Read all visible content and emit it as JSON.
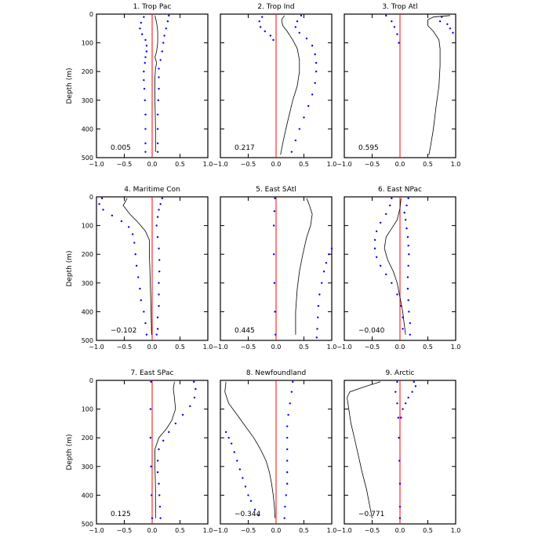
{
  "figure": {
    "ylabel": "Depth (m)",
    "xticks": [
      "−1.0",
      "−0.5",
      "0.0",
      "0.5",
      "1.0"
    ],
    "yticks": [
      "0",
      "100",
      "200",
      "300",
      "400",
      "500"
    ]
  },
  "colors": {
    "zero_line": "#ff0000",
    "dotted_series": "#0000ff",
    "solid_series": "#000000"
  },
  "chart_data": [
    {
      "type": "line",
      "title": "1. Trop Pac",
      "annotation": "0.005",
      "xlim": [
        -1.0,
        1.0
      ],
      "ylim": [
        500,
        0
      ],
      "solid": [
        [
          0.05,
          5
        ],
        [
          0.08,
          30
        ],
        [
          0.1,
          60
        ],
        [
          0.1,
          100
        ],
        [
          0.08,
          130
        ],
        [
          0.05,
          150
        ],
        [
          0.08,
          170
        ],
        [
          0.06,
          190
        ],
        [
          0.05,
          220
        ],
        [
          0.05,
          300
        ],
        [
          0.06,
          400
        ],
        [
          0.06,
          480
        ]
      ],
      "dots_left": [
        [
          -0.15,
          10
        ],
        [
          -0.2,
          30
        ],
        [
          -0.22,
          50
        ],
        [
          -0.18,
          70
        ],
        [
          -0.12,
          90
        ],
        [
          -0.1,
          110
        ],
        [
          -0.1,
          130
        ],
        [
          -0.12,
          150
        ],
        [
          -0.13,
          170
        ],
        [
          -0.15,
          200
        ],
        [
          -0.15,
          230
        ],
        [
          -0.14,
          260
        ],
        [
          -0.13,
          300
        ],
        [
          -0.12,
          350
        ],
        [
          -0.12,
          400
        ],
        [
          -0.12,
          450
        ],
        [
          -0.12,
          480
        ]
      ],
      "dots_right": [
        [
          0.3,
          5
        ],
        [
          0.28,
          25
        ],
        [
          0.25,
          50
        ],
        [
          0.22,
          75
        ],
        [
          0.2,
          100
        ],
        [
          0.18,
          130
        ],
        [
          0.15,
          160
        ],
        [
          0.12,
          190
        ],
        [
          0.12,
          220
        ],
        [
          0.12,
          260
        ],
        [
          0.11,
          300
        ],
        [
          0.1,
          350
        ],
        [
          0.1,
          400
        ],
        [
          0.1,
          450
        ],
        [
          0.1,
          480
        ]
      ]
    },
    {
      "type": "line",
      "title": "2. Trop Ind",
      "annotation": "0.217",
      "xlim": [
        -1.0,
        1.0
      ],
      "ylim": [
        500,
        0
      ],
      "solid": [
        [
          0.15,
          5
        ],
        [
          0.1,
          20
        ],
        [
          0.12,
          40
        ],
        [
          0.2,
          60
        ],
        [
          0.3,
          90
        ],
        [
          0.38,
          120
        ],
        [
          0.42,
          160
        ],
        [
          0.42,
          200
        ],
        [
          0.38,
          250
        ],
        [
          0.3,
          300
        ],
        [
          0.2,
          380
        ],
        [
          0.12,
          450
        ],
        [
          0.08,
          490
        ]
      ],
      "dots_left": [
        [
          -0.25,
          10
        ],
        [
          -0.3,
          25
        ],
        [
          -0.28,
          45
        ],
        [
          -0.2,
          60
        ],
        [
          -0.1,
          75
        ],
        [
          -0.05,
          90
        ]
      ],
      "dots_right": [
        [
          0.45,
          5
        ],
        [
          0.38,
          25
        ],
        [
          0.35,
          45
        ],
        [
          0.42,
          65
        ],
        [
          0.55,
          85
        ],
        [
          0.65,
          110
        ],
        [
          0.7,
          140
        ],
        [
          0.72,
          170
        ],
        [
          0.72,
          200
        ],
        [
          0.7,
          240
        ],
        [
          0.65,
          280
        ],
        [
          0.58,
          320
        ],
        [
          0.5,
          360
        ],
        [
          0.42,
          400
        ],
        [
          0.35,
          440
        ],
        [
          0.28,
          480
        ]
      ]
    },
    {
      "type": "line",
      "title": "3. Trop Atl",
      "annotation": "0.595",
      "xlim": [
        -1.0,
        1.0
      ],
      "ylim": [
        500,
        0
      ],
      "solid": [
        [
          0.9,
          5
        ],
        [
          0.6,
          10
        ],
        [
          0.5,
          20
        ],
        [
          0.5,
          40
        ],
        [
          0.6,
          60
        ],
        [
          0.7,
          90
        ],
        [
          0.72,
          120
        ],
        [
          0.72,
          180
        ],
        [
          0.7,
          250
        ],
        [
          0.65,
          320
        ],
        [
          0.6,
          400
        ],
        [
          0.55,
          460
        ],
        [
          0.52,
          490
        ]
      ],
      "dots_left": [
        [
          -0.25,
          5
        ],
        [
          -0.15,
          25
        ],
        [
          -0.1,
          45
        ],
        [
          -0.05,
          70
        ],
        [
          -0.02,
          100
        ]
      ],
      "dots_right": [
        [
          0.75,
          10
        ],
        [
          0.72,
          25
        ],
        [
          0.85,
          35
        ],
        [
          0.9,
          50
        ],
        [
          0.95,
          65
        ]
      ]
    },
    {
      "type": "line",
      "title": "4. Maritime Con",
      "annotation": "−0.102",
      "xlim": [
        -1.0,
        1.0
      ],
      "ylim": [
        500,
        0
      ],
      "solid": [
        [
          -0.45,
          5
        ],
        [
          -0.52,
          30
        ],
        [
          -0.4,
          60
        ],
        [
          -0.25,
          90
        ],
        [
          -0.12,
          120
        ],
        [
          -0.05,
          150
        ],
        [
          -0.05,
          200
        ],
        [
          -0.04,
          260
        ],
        [
          -0.03,
          330
        ],
        [
          -0.02,
          400
        ],
        [
          -0.01,
          480
        ]
      ],
      "dots_left": [
        [
          -0.9,
          5
        ],
        [
          -0.95,
          25
        ],
        [
          -0.88,
          45
        ],
        [
          -0.72,
          65
        ],
        [
          -0.55,
          85
        ],
        [
          -0.42,
          105
        ],
        [
          -0.35,
          130
        ],
        [
          -0.32,
          160
        ],
        [
          -0.3,
          200
        ],
        [
          -0.28,
          240
        ],
        [
          -0.25,
          280
        ],
        [
          -0.22,
          320
        ],
        [
          -0.2,
          360
        ],
        [
          -0.15,
          400
        ],
        [
          -0.12,
          440
        ],
        [
          -0.1,
          480
        ]
      ],
      "dots_right": [
        [
          0.18,
          5
        ],
        [
          0.15,
          25
        ],
        [
          0.12,
          45
        ],
        [
          0.1,
          70
        ],
        [
          0.08,
          100
        ],
        [
          0.1,
          140
        ],
        [
          0.12,
          180
        ],
        [
          0.13,
          220
        ],
        [
          0.13,
          260
        ],
        [
          0.12,
          300
        ],
        [
          0.12,
          340
        ],
        [
          0.12,
          380
        ],
        [
          0.1,
          420
        ],
        [
          0.1,
          460
        ],
        [
          0.08,
          480
        ]
      ]
    },
    {
      "type": "line",
      "title": "5. East SAtl",
      "annotation": "0.445",
      "xlim": [
        -1.0,
        1.0
      ],
      "ylim": [
        500,
        0
      ],
      "solid": [
        [
          0.55,
          5
        ],
        [
          0.6,
          30
        ],
        [
          0.65,
          60
        ],
        [
          0.62,
          100
        ],
        [
          0.55,
          140
        ],
        [
          0.48,
          200
        ],
        [
          0.42,
          260
        ],
        [
          0.38,
          320
        ],
        [
          0.35,
          400
        ],
        [
          0.35,
          480
        ]
      ],
      "dots_left": [
        [
          -0.02,
          5
        ],
        [
          -0.03,
          50
        ],
        [
          -0.04,
          100
        ],
        [
          -0.04,
          200
        ],
        [
          -0.03,
          300
        ],
        [
          -0.02,
          400
        ],
        [
          -0.01,
          480
        ]
      ],
      "dots_right": [
        [
          1.0,
          180
        ],
        [
          0.95,
          200
        ],
        [
          0.9,
          230
        ],
        [
          0.86,
          260
        ],
        [
          0.82,
          300
        ],
        [
          0.78,
          340
        ],
        [
          0.76,
          380
        ],
        [
          0.75,
          420
        ],
        [
          0.74,
          460
        ],
        [
          0.73,
          490
        ]
      ]
    },
    {
      "type": "line",
      "title": "6. East NPac",
      "annotation": "−0.040",
      "xlim": [
        -1.0,
        1.0
      ],
      "ylim": [
        500,
        0
      ],
      "solid": [
        [
          0.02,
          5
        ],
        [
          0.0,
          40
        ],
        [
          -0.05,
          80
        ],
        [
          -0.15,
          110
        ],
        [
          -0.25,
          140
        ],
        [
          -0.28,
          180
        ],
        [
          -0.22,
          220
        ],
        [
          -0.12,
          260
        ],
        [
          -0.05,
          300
        ],
        [
          0.0,
          350
        ],
        [
          0.05,
          400
        ],
        [
          0.08,
          450
        ],
        [
          0.1,
          480
        ]
      ],
      "dots_left": [
        [
          -0.15,
          5
        ],
        [
          -0.18,
          30
        ],
        [
          -0.25,
          60
        ],
        [
          -0.35,
          90
        ],
        [
          -0.42,
          120
        ],
        [
          -0.45,
          150
        ],
        [
          -0.45,
          180
        ],
        [
          -0.42,
          210
        ],
        [
          -0.35,
          240
        ],
        [
          -0.25,
          270
        ],
        [
          -0.15,
          300
        ],
        [
          -0.05,
          340
        ],
        [
          0.02,
          380
        ],
        [
          0.05,
          420
        ],
        [
          0.05,
          460
        ]
      ],
      "dots_right": [
        [
          0.15,
          5
        ],
        [
          0.12,
          30
        ],
        [
          0.08,
          55
        ],
        [
          0.1,
          80
        ],
        [
          0.12,
          110
        ],
        [
          0.14,
          140
        ],
        [
          0.15,
          170
        ],
        [
          0.16,
          200
        ],
        [
          0.15,
          240
        ],
        [
          0.14,
          280
        ],
        [
          0.14,
          320
        ],
        [
          0.15,
          360
        ],
        [
          0.16,
          400
        ],
        [
          0.18,
          440
        ],
        [
          0.18,
          480
        ]
      ]
    },
    {
      "type": "line",
      "title": "7. East SPac",
      "annotation": "0.125",
      "xlim": [
        -1.0,
        1.0
      ],
      "ylim": [
        500,
        0
      ],
      "solid": [
        [
          0.4,
          5
        ],
        [
          0.38,
          30
        ],
        [
          0.4,
          60
        ],
        [
          0.42,
          100
        ],
        [
          0.35,
          140
        ],
        [
          0.25,
          170
        ],
        [
          0.12,
          200
        ],
        [
          0.05,
          240
        ],
        [
          0.05,
          300
        ],
        [
          0.06,
          380
        ],
        [
          0.06,
          480
        ]
      ],
      "dots_left": [
        [
          -0.02,
          5
        ],
        [
          -0.03,
          100
        ],
        [
          -0.03,
          200
        ],
        [
          -0.02,
          300
        ],
        [
          -0.01,
          400
        ],
        [
          0.0,
          480
        ]
      ],
      "dots_right": [
        [
          0.75,
          5
        ],
        [
          0.78,
          30
        ],
        [
          0.76,
          60
        ],
        [
          0.68,
          90
        ],
        [
          0.55,
          120
        ],
        [
          0.42,
          150
        ],
        [
          0.3,
          180
        ],
        [
          0.2,
          210
        ],
        [
          0.12,
          240
        ],
        [
          0.1,
          280
        ],
        [
          0.1,
          320
        ],
        [
          0.12,
          360
        ],
        [
          0.13,
          400
        ],
        [
          0.14,
          440
        ],
        [
          0.15,
          480
        ]
      ]
    },
    {
      "type": "line",
      "title": "8. Newfoundland",
      "annotation": "−0.344",
      "xlim": [
        -1.0,
        1.0
      ],
      "ylim": [
        500,
        0
      ],
      "solid": [
        [
          -0.9,
          5
        ],
        [
          -0.92,
          40
        ],
        [
          -0.85,
          80
        ],
        [
          -0.7,
          120
        ],
        [
          -0.55,
          160
        ],
        [
          -0.4,
          200
        ],
        [
          -0.28,
          240
        ],
        [
          -0.18,
          280
        ],
        [
          -0.12,
          320
        ],
        [
          -0.08,
          360
        ],
        [
          -0.05,
          400
        ],
        [
          -0.03,
          440
        ],
        [
          -0.02,
          480
        ]
      ],
      "dots_left": [
        [
          -0.9,
          180
        ],
        [
          -0.85,
          200
        ],
        [
          -0.8,
          220
        ],
        [
          -0.75,
          250
        ],
        [
          -0.7,
          280
        ],
        [
          -0.65,
          310
        ],
        [
          -0.6,
          340
        ],
        [
          -0.55,
          370
        ],
        [
          -0.5,
          400
        ],
        [
          -0.45,
          420
        ],
        [
          -0.38,
          450
        ],
        [
          -0.32,
          470
        ]
      ],
      "dots_right": [
        [
          0.3,
          5
        ],
        [
          0.28,
          40
        ],
        [
          0.25,
          80
        ],
        [
          0.22,
          120
        ],
        [
          0.2,
          160
        ],
        [
          0.2,
          200
        ],
        [
          0.2,
          240
        ],
        [
          0.2,
          280
        ],
        [
          0.2,
          320
        ],
        [
          0.2,
          360
        ],
        [
          0.18,
          400
        ],
        [
          0.16,
          440
        ],
        [
          0.15,
          480
        ]
      ]
    },
    {
      "type": "line",
      "title": "9. Arctic",
      "annotation": "−0.771",
      "xlim": [
        -1.0,
        1.0
      ],
      "ylim": [
        500,
        0
      ],
      "solid": [
        [
          -0.35,
          5
        ],
        [
          -0.6,
          20
        ],
        [
          -0.9,
          40
        ],
        [
          -0.95,
          60
        ],
        [
          -0.92,
          100
        ],
        [
          -0.88,
          150
        ],
        [
          -0.82,
          200
        ],
        [
          -0.75,
          260
        ],
        [
          -0.68,
          320
        ],
        [
          -0.6,
          380
        ],
        [
          -0.55,
          430
        ],
        [
          -0.5,
          480
        ]
      ],
      "dots_left": [
        [
          -0.05,
          5
        ],
        [
          -0.08,
          40
        ],
        [
          -0.05,
          80
        ],
        [
          -0.03,
          130
        ],
        [
          -0.02,
          200
        ],
        [
          -0.01,
          280
        ],
        [
          0.0,
          360
        ],
        [
          0.0,
          440
        ],
        [
          0.0,
          480
        ]
      ],
      "dots_right": [
        [
          0.25,
          5
        ],
        [
          0.28,
          20
        ],
        [
          0.22,
          40
        ],
        [
          0.15,
          60
        ],
        [
          0.1,
          80
        ],
        [
          0.05,
          100
        ],
        [
          0.02,
          130
        ]
      ]
    }
  ]
}
